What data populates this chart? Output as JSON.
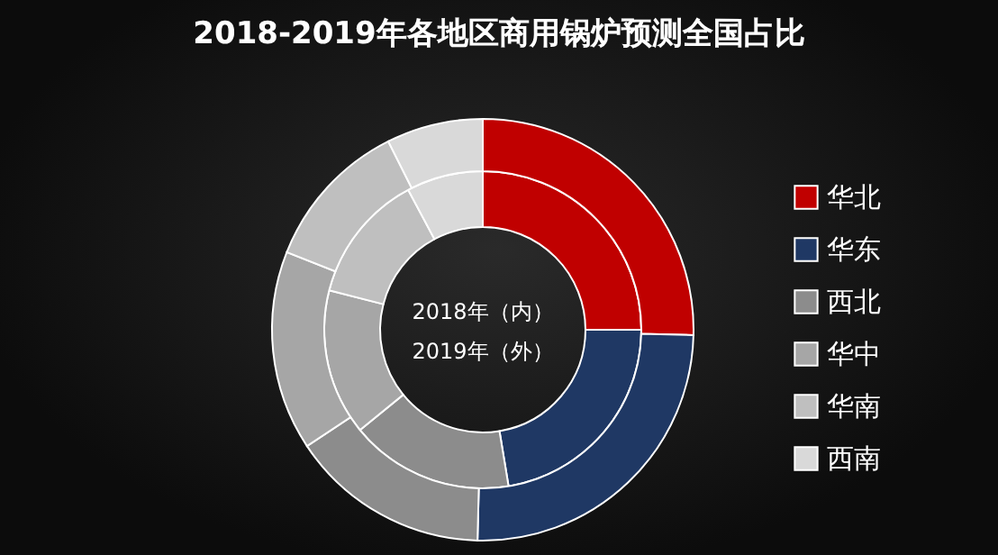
{
  "chart_data": {
    "type": "donut",
    "title": "2018-2019年各地区商用锅炉预测全国占比",
    "categories": [
      "华北",
      "华东",
      "西北",
      "华中",
      "华南",
      "西南"
    ],
    "colors": [
      "#c00000",
      "#1f3864",
      "#8c8c8c",
      "#a6a6a6",
      "#bfbfbf",
      "#d9d9d9"
    ],
    "series": [
      {
        "values": [
          25,
          22.4,
          16.7,
          14.9,
          13.2,
          7.8
        ]
      },
      {
        "values": [
          25.4,
          25,
          15.3,
          15.3,
          11.6,
          7.4
        ]
      }
    ],
    "annotations": [
      "2018年（内）",
      "2019年（外）"
    ],
    "legend": "right"
  }
}
